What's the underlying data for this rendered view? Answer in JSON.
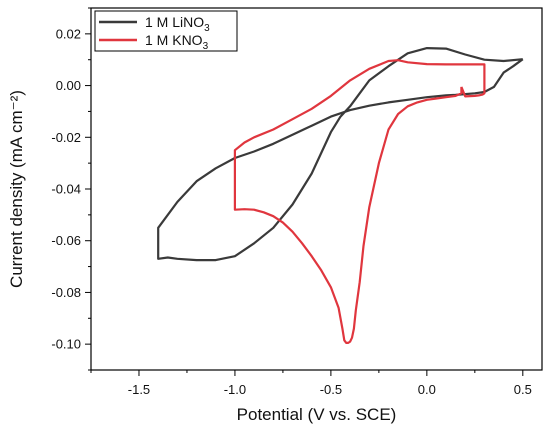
{
  "chart_data": {
    "type": "line",
    "xlabel": "Potential (V vs. SCE)",
    "ylabel": "Current density (mA cm⁻²)",
    "xlim": [
      -1.75,
      0.6
    ],
    "ylim": [
      -0.11,
      0.03
    ],
    "x_ticks": [
      -1.5,
      -1.0,
      -0.5,
      0.0,
      0.5
    ],
    "x_tick_labels": [
      "-1.5",
      "-1.0",
      "-0.5",
      "0.0",
      "0.5"
    ],
    "y_ticks": [
      0.02,
      0.0,
      -0.02,
      -0.04,
      -0.06,
      -0.08,
      -0.1
    ],
    "y_tick_labels": [
      "0.02",
      "0.00",
      "-0.02",
      "-0.04",
      "-0.06",
      "-0.08",
      "-0.10"
    ],
    "grid": false,
    "legend_position": "top-left",
    "series": [
      {
        "name": "1 M LiNO3",
        "label_main": "1 M LiNO",
        "label_sub": "3",
        "color": "#3a3a3a",
        "x": [
          0.5,
          0.45,
          0.4,
          0.35,
          0.3,
          0.25,
          0.2,
          0.15,
          0.1,
          0.0,
          -0.1,
          -0.2,
          -0.3,
          -0.4,
          -0.5,
          -0.6,
          -0.7,
          -0.8,
          -0.9,
          -1.0,
          -1.1,
          -1.2,
          -1.3,
          -1.4,
          -1.4,
          -1.35,
          -1.3,
          -1.2,
          -1.1,
          -1.0,
          -0.9,
          -0.8,
          -0.7,
          -0.6,
          -0.5,
          -0.45,
          -0.4,
          -0.35,
          -0.3,
          -0.2,
          -0.1,
          0.0,
          0.1,
          0.2,
          0.3,
          0.4,
          0.5
        ],
        "y": [
          0.0102,
          0.0075,
          0.005,
          -0.0005,
          -0.0025,
          -0.003,
          -0.0033,
          -0.0036,
          -0.0038,
          -0.0045,
          -0.0055,
          -0.0065,
          -0.0078,
          -0.0095,
          -0.012,
          -0.0155,
          -0.019,
          -0.0225,
          -0.0255,
          -0.028,
          -0.032,
          -0.037,
          -0.045,
          -0.055,
          -0.067,
          -0.0665,
          -0.067,
          -0.0675,
          -0.0675,
          -0.066,
          -0.061,
          -0.055,
          -0.046,
          -0.034,
          -0.018,
          -0.012,
          -0.008,
          -0.003,
          0.002,
          0.0075,
          0.0125,
          0.0145,
          0.0143,
          0.012,
          0.01,
          0.0095,
          0.0102
        ]
      },
      {
        "name": "1 M KNO3",
        "label_main": "1 M KNO",
        "label_sub": "3",
        "color": "#e0363e",
        "x": [
          0.18,
          0.18,
          0.15,
          0.1,
          0.05,
          0.0,
          -0.05,
          -0.1,
          -0.15,
          -0.2,
          -0.25,
          -0.3,
          -0.33,
          -0.35,
          -0.37,
          -0.38,
          -0.39,
          -0.4,
          -0.41,
          -0.42,
          -0.43,
          -0.44,
          -0.46,
          -0.5,
          -0.55,
          -0.6,
          -0.65,
          -0.7,
          -0.75,
          -0.8,
          -0.85,
          -0.9,
          -0.95,
          -1.0,
          -1.0,
          -1.0,
          -0.95,
          -0.9,
          -0.8,
          -0.7,
          -0.6,
          -0.5,
          -0.4,
          -0.3,
          -0.2,
          -0.15,
          -0.1,
          0.0,
          0.1,
          0.2,
          0.3,
          0.3,
          0.29,
          0.27,
          0.25,
          0.2,
          0.18
        ],
        "y": [
          -0.0005,
          -0.003,
          -0.004,
          -0.0045,
          -0.005,
          -0.0055,
          -0.0065,
          -0.008,
          -0.011,
          -0.017,
          -0.03,
          -0.047,
          -0.062,
          -0.076,
          -0.087,
          -0.094,
          -0.0975,
          -0.099,
          -0.0995,
          -0.0995,
          -0.0985,
          -0.094,
          -0.086,
          -0.078,
          -0.0715,
          -0.066,
          -0.061,
          -0.0565,
          -0.053,
          -0.0505,
          -0.049,
          -0.048,
          -0.0478,
          -0.048,
          -0.04,
          -0.025,
          -0.022,
          -0.02,
          -0.017,
          -0.013,
          -0.009,
          -0.004,
          0.002,
          0.0065,
          0.0095,
          0.0098,
          0.009,
          0.0083,
          0.0082,
          0.0082,
          0.0082,
          -0.003,
          -0.0035,
          -0.0038,
          -0.004,
          -0.0042,
          -0.0005
        ]
      }
    ]
  }
}
